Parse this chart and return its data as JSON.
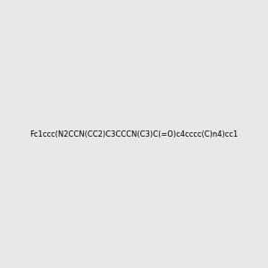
{
  "smiles": "Fc1ccc(N2CCN(CC2)C3CCCN(C3)C(=O)c4cccc(C)n4)cc1",
  "background_color": "#e8e8e8",
  "title": "",
  "img_size": [
    300,
    300
  ],
  "atom_colors": {
    "F": "#ff00ff",
    "N": "#0000ff",
    "O": "#ff0000",
    "C": "#000000"
  }
}
